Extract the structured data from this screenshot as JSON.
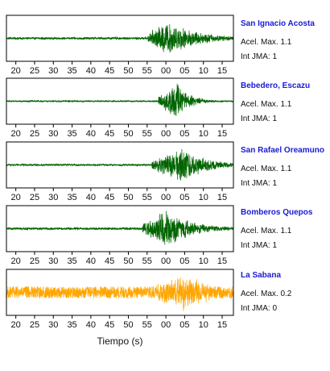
{
  "chart_data": {
    "type": "line",
    "xlabel": "Tiempo (s)",
    "tick_labels": [
      "20",
      "25",
      "30",
      "35",
      "40",
      "45",
      "50",
      "55",
      "00",
      "05",
      "10",
      "15"
    ],
    "x_range_seconds": [
      17.5,
      78
    ],
    "grid": false,
    "panels": [
      {
        "station": "San Ignacio Acosta",
        "acel_label": "Acel. Max. 1.1",
        "int_label": "Int JMA: 1",
        "color": "#006400",
        "onset": 55.2,
        "peak_time": 60.5,
        "decay": 8,
        "pre_noise": 0.05,
        "amp": 0.9
      },
      {
        "station": "Bebedero, Escazu",
        "acel_label": "Acel. Max. 1.1",
        "int_label": "Int JMA: 1",
        "color": "#006400",
        "onset": 58.0,
        "peak_time": 63.0,
        "decay": 3.5,
        "pre_noise": 0.03,
        "amp": 0.95
      },
      {
        "station": "San Rafael Oreamuno",
        "acel_label": "Acel. Max. 1.1",
        "int_label": "Int JMA: 1",
        "color": "#006400",
        "onset": 56.3,
        "peak_time": 64.5,
        "decay": 6,
        "pre_noise": 0.04,
        "amp": 0.95
      },
      {
        "station": "Bomberos Quepos",
        "acel_label": "Acel. Max. 1.1",
        "int_label": "Int JMA: 1",
        "color": "#006400",
        "onset": 53.8,
        "peak_time": 60.0,
        "decay": 7,
        "pre_noise": 0.05,
        "amp": 0.95
      },
      {
        "station": "La Sabana",
        "acel_label": "Acel. Max. 0.2",
        "int_label": "Int JMA: 0",
        "color": "#FFA500",
        "onset": 55.8,
        "peak_time": 64.5,
        "decay": 10,
        "pre_noise": 0.28,
        "amp": 0.95
      }
    ]
  }
}
